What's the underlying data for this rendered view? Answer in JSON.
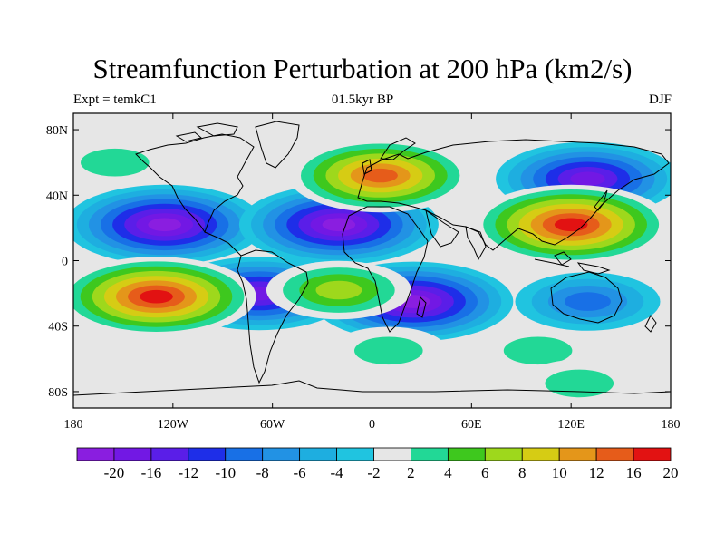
{
  "title": "Streamfunction Perturbation at 200 hPa (km2/s)",
  "left_subtitle": "Expt = temkC1",
  "center_subtitle": "01.5kyr BP",
  "right_subtitle": "DJF",
  "lon_ticks": [
    "180",
    "120W",
    "60W",
    "0",
    "60E",
    "120E",
    "180"
  ],
  "lat_ticks": [
    "80N",
    "40N",
    "0",
    "40S",
    "80S"
  ],
  "colorbar": {
    "labels": [
      "-20",
      "-16",
      "-12",
      "-10",
      "-8",
      "-6",
      "-4",
      "-2",
      "2",
      "4",
      "6",
      "8",
      "10",
      "12",
      "16",
      "20"
    ],
    "colors": [
      "#8a1ee0",
      "#7218e4",
      "#5a1ee8",
      "#1e2ee8",
      "#1870e6",
      "#2292e4",
      "#1eaee0",
      "#20c4e0",
      "#e6e6e6",
      "#22d896",
      "#3ec81e",
      "#9ed81c",
      "#d6cc14",
      "#e4961a",
      "#e65c1a",
      "#e21212"
    ]
  },
  "chart_data": {
    "type": "heatmap",
    "projection": "cylindrical equidistant",
    "variable": "Streamfunction Perturbation at 200 hPa",
    "units": "km2/s",
    "lon_range": [
      -180,
      180
    ],
    "lat_range": [
      -90,
      90
    ],
    "levels": [
      -20,
      -16,
      -12,
      -10,
      -8,
      -6,
      -4,
      -2,
      2,
      4,
      6,
      8,
      10,
      12,
      16,
      20
    ],
    "features": [
      {
        "lon": -125,
        "lat": 22,
        "value": -20
      },
      {
        "lon": -20,
        "lat": 22,
        "value": -20
      },
      {
        "lon": 25,
        "lat": -25,
        "value": -20
      },
      {
        "lon": 130,
        "lat": 50,
        "value": -16
      },
      {
        "lon": -68,
        "lat": -20,
        "value": -16
      },
      {
        "lon": 130,
        "lat": -25,
        "value": -8
      },
      {
        "lon": -130,
        "lat": -22,
        "value": 20
      },
      {
        "lon": 120,
        "lat": 22,
        "value": 20
      },
      {
        "lon": 5,
        "lat": 52,
        "value": 16
      },
      {
        "lon": -20,
        "lat": -18,
        "value": 8
      },
      {
        "lon": -155,
        "lat": 60,
        "value": 4
      },
      {
        "lon": 10,
        "lat": -55,
        "value": 4
      },
      {
        "lon": 100,
        "lat": -55,
        "value": 4
      },
      {
        "lon": 125,
        "lat": -75,
        "value": 4
      }
    ]
  }
}
